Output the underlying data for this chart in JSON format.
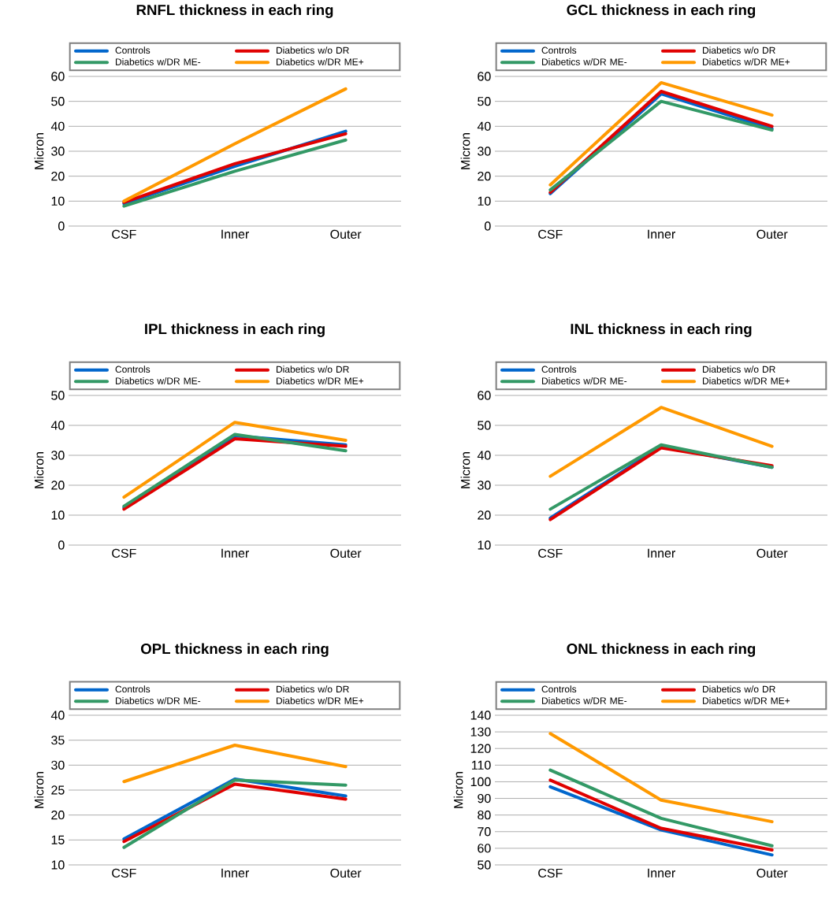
{
  "chart_data": [
    {
      "type": "line",
      "title": "RNFL thickness in each ring",
      "ylabel": "Micron",
      "categories": [
        "CSF",
        "Inner",
        "Outer"
      ],
      "ylim": [
        0,
        60
      ],
      "yticks": [
        0,
        10,
        20,
        30,
        40,
        50,
        60
      ],
      "grid": "y",
      "legend": "top",
      "series": [
        {
          "name": "Controls",
          "color": "#0066cc",
          "values": [
            9,
            24,
            38
          ]
        },
        {
          "name": "Diabetics w/o DR",
          "color": "#e00000",
          "values": [
            9.5,
            25,
            37
          ]
        },
        {
          "name": "Diabetics w/DR ME-",
          "color": "#339966",
          "values": [
            8,
            22,
            34.5
          ]
        },
        {
          "name": "Diabetics w/DR ME+",
          "color": "#ff9900",
          "values": [
            10,
            33,
            55
          ]
        }
      ]
    },
    {
      "type": "line",
      "title": "GCL thickness in each ring",
      "ylabel": "Micron",
      "categories": [
        "CSF",
        "Inner",
        "Outer"
      ],
      "ylim": [
        0,
        60
      ],
      "yticks": [
        0,
        10,
        20,
        30,
        40,
        50,
        60
      ],
      "grid": "y",
      "legend": "top",
      "series": [
        {
          "name": "Controls",
          "color": "#0066cc",
          "values": [
            13,
            53,
            39
          ]
        },
        {
          "name": "Diabetics w/o DR",
          "color": "#e00000",
          "values": [
            13.5,
            54,
            40
          ]
        },
        {
          "name": "Diabetics w/DR ME-",
          "color": "#339966",
          "values": [
            14.5,
            50,
            38.5
          ]
        },
        {
          "name": "Diabetics w/DR ME+",
          "color": "#ff9900",
          "values": [
            16.5,
            57.5,
            44.5
          ]
        }
      ]
    },
    {
      "type": "line",
      "title": "IPL thickness in each ring",
      "ylabel": "Micron",
      "categories": [
        "CSF",
        "Inner",
        "Outer"
      ],
      "ylim": [
        0,
        50
      ],
      "yticks": [
        0,
        10,
        20,
        30,
        40,
        50
      ],
      "grid": "y",
      "legend": "top",
      "series": [
        {
          "name": "Controls",
          "color": "#0066cc",
          "values": [
            12.5,
            36.5,
            33.5
          ]
        },
        {
          "name": "Diabetics w/o DR",
          "color": "#e00000",
          "values": [
            12,
            35.5,
            33
          ]
        },
        {
          "name": "Diabetics w/DR ME-",
          "color": "#339966",
          "values": [
            13,
            37,
            31.5
          ]
        },
        {
          "name": "Diabetics w/DR ME+",
          "color": "#ff9900",
          "values": [
            16,
            41,
            35
          ]
        }
      ]
    },
    {
      "type": "line",
      "title": "INL thickness in each ring",
      "ylabel": "Micron",
      "categories": [
        "CSF",
        "Inner",
        "Outer"
      ],
      "ylim": [
        10,
        60
      ],
      "yticks": [
        10,
        20,
        30,
        40,
        50,
        60
      ],
      "grid": "y",
      "legend": "top",
      "series": [
        {
          "name": "Controls",
          "color": "#0066cc",
          "values": [
            19,
            43,
            36
          ]
        },
        {
          "name": "Diabetics w/o DR",
          "color": "#e00000",
          "values": [
            18.5,
            42.5,
            36.5
          ]
        },
        {
          "name": "Diabetics w/DR ME-",
          "color": "#339966",
          "values": [
            22,
            43.5,
            36
          ]
        },
        {
          "name": "Diabetics w/DR ME+",
          "color": "#ff9900",
          "values": [
            33,
            56,
            43
          ]
        }
      ]
    },
    {
      "type": "line",
      "title": "OPL thickness in each ring",
      "ylabel": "Micron",
      "categories": [
        "CSF",
        "Inner",
        "Outer"
      ],
      "ylim": [
        10,
        40
      ],
      "yticks": [
        10,
        15,
        20,
        25,
        30,
        35,
        40
      ],
      "grid": "y",
      "legend": "top",
      "series": [
        {
          "name": "Controls",
          "color": "#0066cc",
          "values": [
            15.2,
            27.2,
            23.8
          ]
        },
        {
          "name": "Diabetics w/o DR",
          "color": "#e00000",
          "values": [
            14.7,
            26.2,
            23.2
          ]
        },
        {
          "name": "Diabetics w/DR ME-",
          "color": "#339966",
          "values": [
            13.5,
            27,
            26
          ]
        },
        {
          "name": "Diabetics w/DR ME+",
          "color": "#ff9900",
          "values": [
            26.7,
            34,
            29.7
          ]
        }
      ]
    },
    {
      "type": "line",
      "title": "ONL thickness in each ring",
      "ylabel": "Micron",
      "categories": [
        "CSF",
        "Inner",
        "Outer"
      ],
      "ylim": [
        50,
        140
      ],
      "yticks": [
        50,
        60,
        70,
        80,
        90,
        100,
        110,
        120,
        130,
        140
      ],
      "grid": "y",
      "legend": "top",
      "series": [
        {
          "name": "Controls",
          "color": "#0066cc",
          "values": [
            97,
            71,
            56
          ]
        },
        {
          "name": "Diabetics w/o DR",
          "color": "#e00000",
          "values": [
            101,
            72,
            59
          ]
        },
        {
          "name": "Diabetics w/DR ME-",
          "color": "#339966",
          "values": [
            107,
            78,
            61.5
          ]
        },
        {
          "name": "Diabetics w/DR ME+",
          "color": "#ff9900",
          "values": [
            129,
            89,
            76
          ]
        }
      ]
    }
  ]
}
